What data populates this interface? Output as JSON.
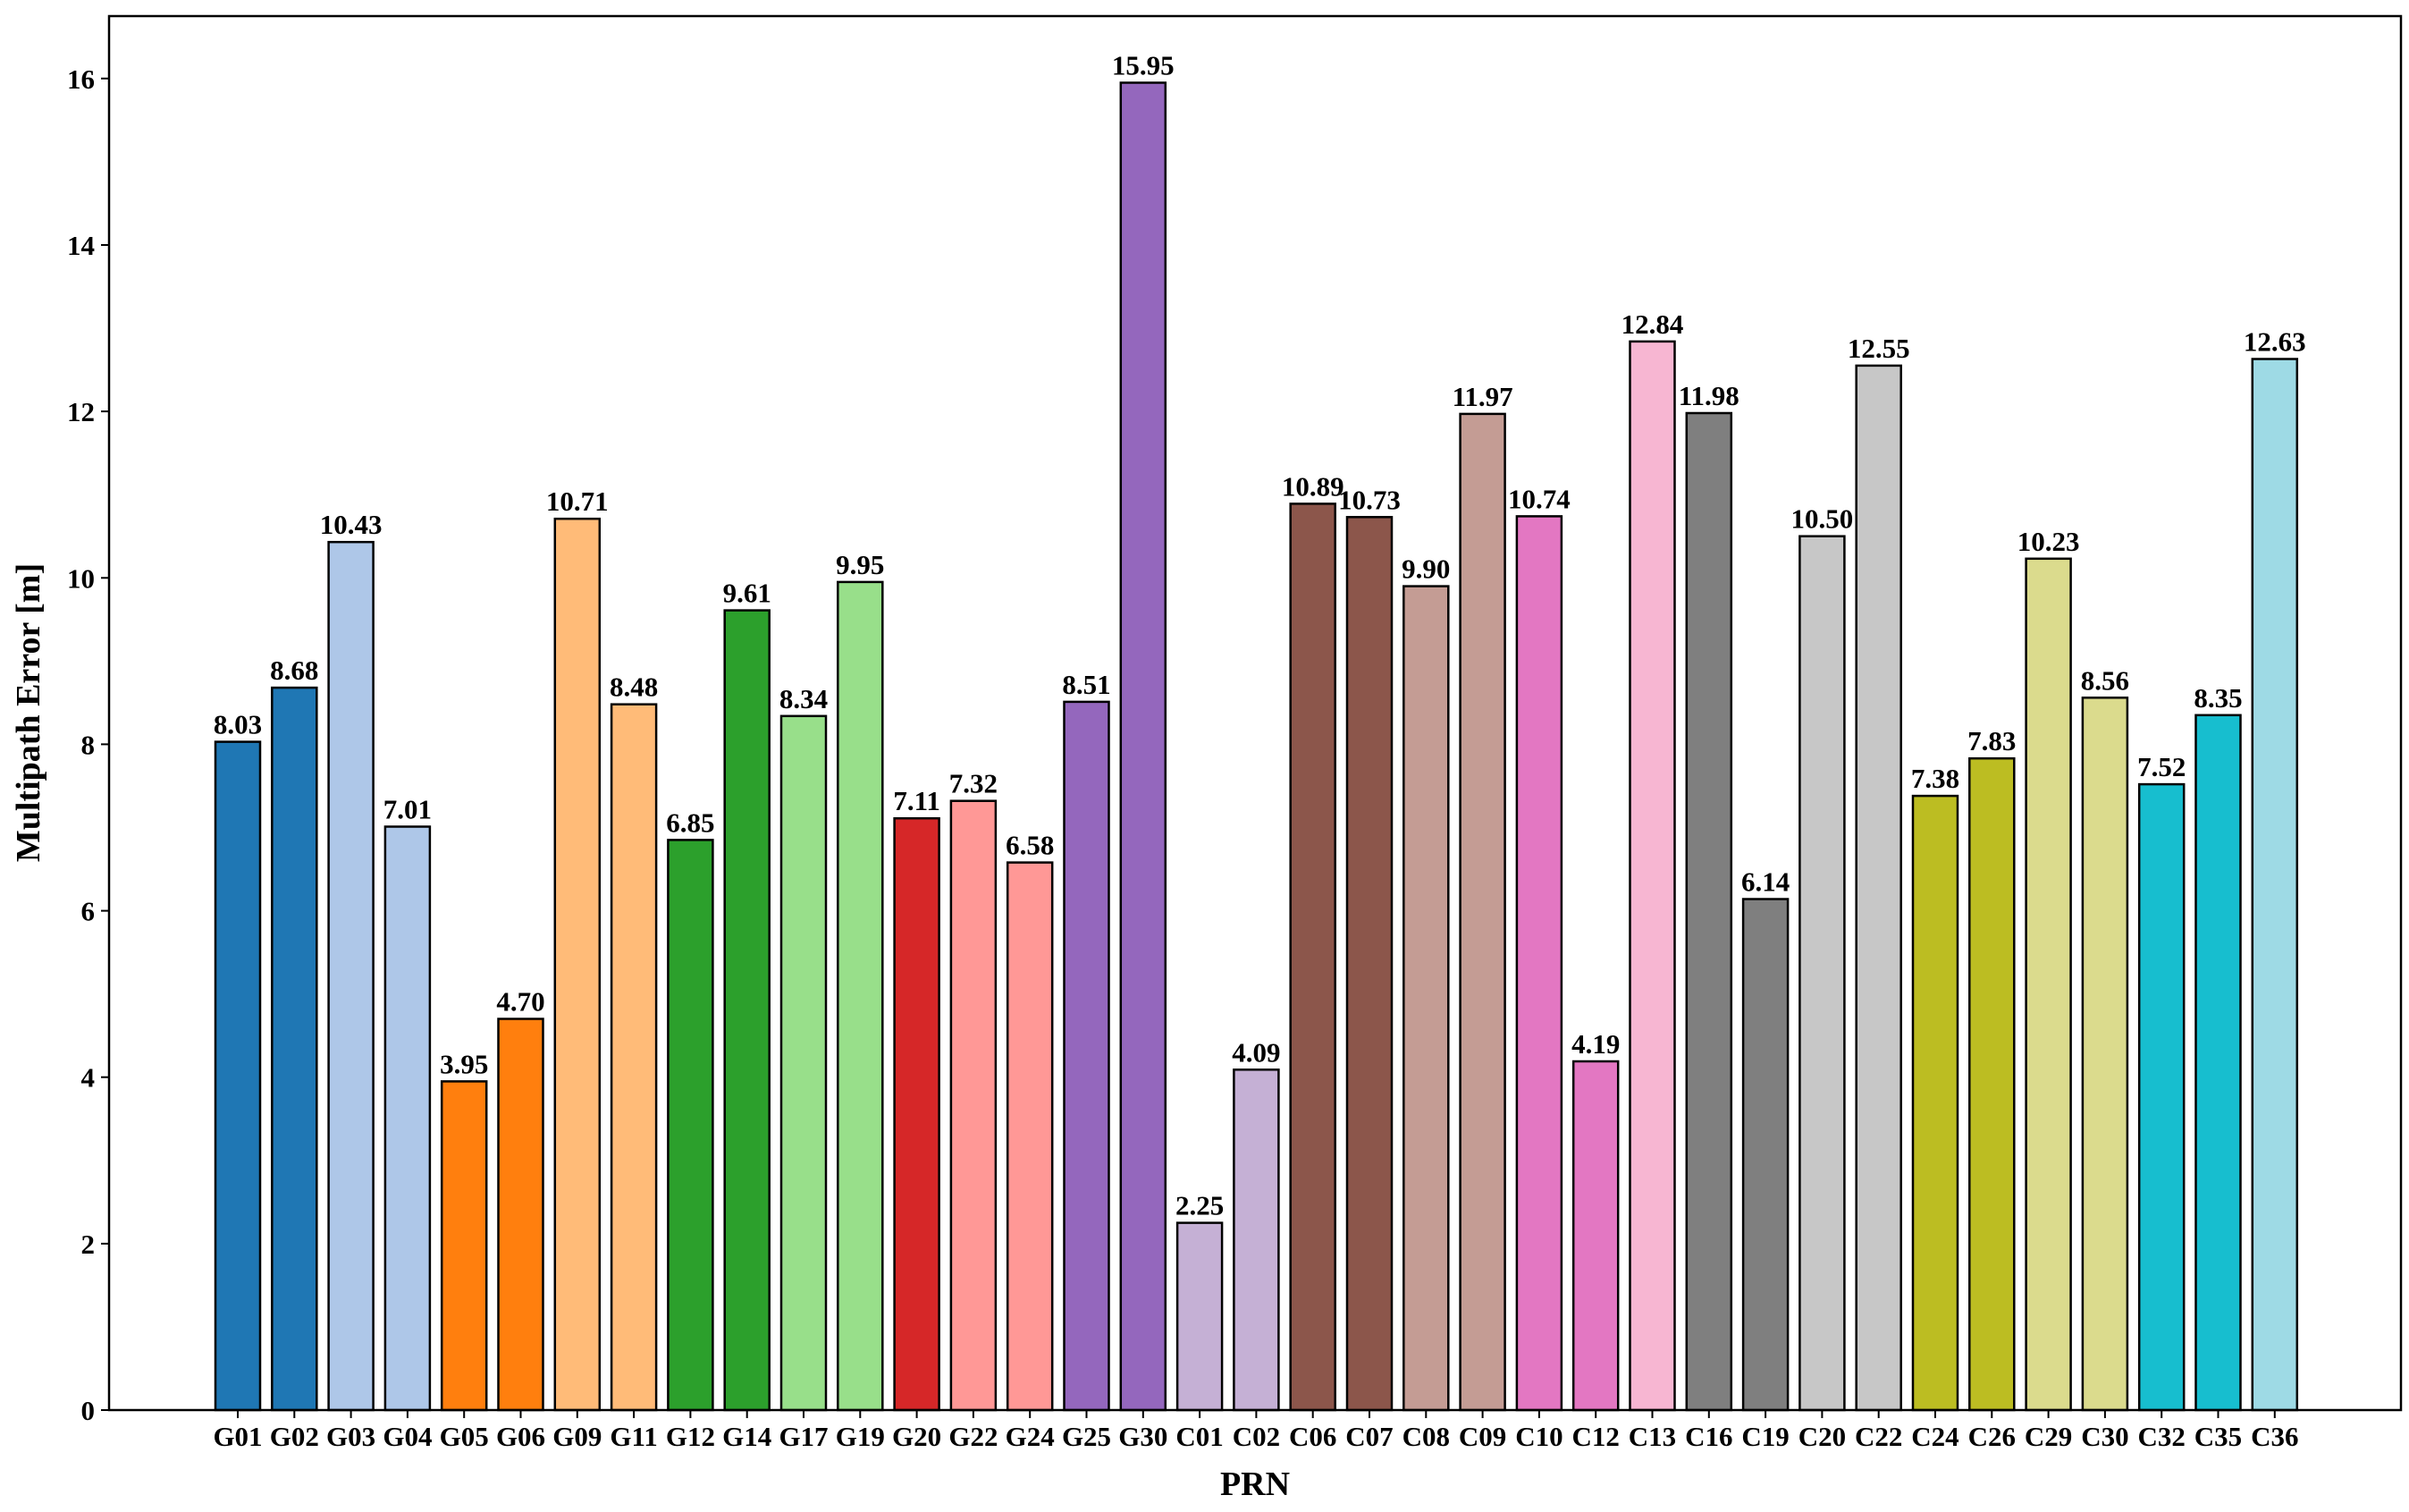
{
  "chart_data": {
    "type": "bar",
    "title": "",
    "xlabel": "PRN",
    "ylabel": "Multipath Error [m]",
    "ylim": [
      0,
      16.75
    ],
    "yticks": [
      0,
      2,
      4,
      6,
      8,
      10,
      12,
      14,
      16
    ],
    "ytick_labels": [
      "0",
      "2",
      "4",
      "6",
      "8",
      "10",
      "12",
      "14",
      "16"
    ],
    "categories": [
      "G01",
      "G02",
      "G03",
      "G04",
      "G05",
      "G06",
      "G09",
      "G11",
      "G12",
      "G14",
      "G17",
      "G19",
      "G20",
      "G22",
      "G24",
      "G25",
      "G30",
      "C01",
      "C02",
      "C06",
      "C07",
      "C08",
      "C09",
      "C10",
      "C12",
      "C13",
      "C16",
      "C19",
      "C20",
      "C22",
      "C24",
      "C26",
      "C29",
      "C30",
      "C32",
      "C35",
      "C36"
    ],
    "values": [
      8.03,
      8.68,
      10.43,
      7.01,
      3.95,
      4.7,
      10.71,
      8.48,
      6.85,
      9.61,
      8.34,
      9.95,
      7.11,
      7.32,
      6.58,
      8.51,
      15.95,
      2.25,
      4.09,
      10.89,
      10.73,
      9.9,
      11.97,
      10.74,
      4.19,
      12.84,
      11.98,
      6.14,
      10.5,
      12.55,
      7.38,
      7.83,
      10.23,
      8.56,
      7.52,
      8.35,
      12.63
    ],
    "value_labels": [
      "8.03",
      "8.68",
      "10.43",
      "7.01",
      "3.95",
      "4.70",
      "10.71",
      "8.48",
      "6.85",
      "9.61",
      "8.34",
      "9.95",
      "7.11",
      "7.32",
      "6.58",
      "8.51",
      "15.95",
      "2.25",
      "4.09",
      "10.89",
      "10.73",
      "9.90",
      "11.97",
      "10.74",
      "4.19",
      "12.84",
      "11.98",
      "6.14",
      "10.50",
      "12.55",
      "7.38",
      "7.83",
      "10.23",
      "8.56",
      "7.52",
      "8.35",
      "12.63"
    ],
    "colors": [
      "#1f77b4",
      "#1f77b4",
      "#aec7e8",
      "#aec7e8",
      "#ff7f0e",
      "#ff7f0e",
      "#ffbb78",
      "#ffbb78",
      "#2ca02c",
      "#2ca02c",
      "#98df8a",
      "#98df8a",
      "#d62728",
      "#ff9896",
      "#ff9896",
      "#9467bd",
      "#9467bd",
      "#c5b0d5",
      "#c5b0d5",
      "#8c564b",
      "#8c564b",
      "#c49c94",
      "#c49c94",
      "#e377c2",
      "#e377c2",
      "#f7b6d2",
      "#7f7f7f",
      "#7f7f7f",
      "#c7c7c7",
      "#c7c7c7",
      "#bcbd22",
      "#bcbd22",
      "#dbdb8d",
      "#dbdb8d",
      "#17becf",
      "#17becf",
      "#9edae5"
    ],
    "bar_edge_color": "#000000"
  }
}
